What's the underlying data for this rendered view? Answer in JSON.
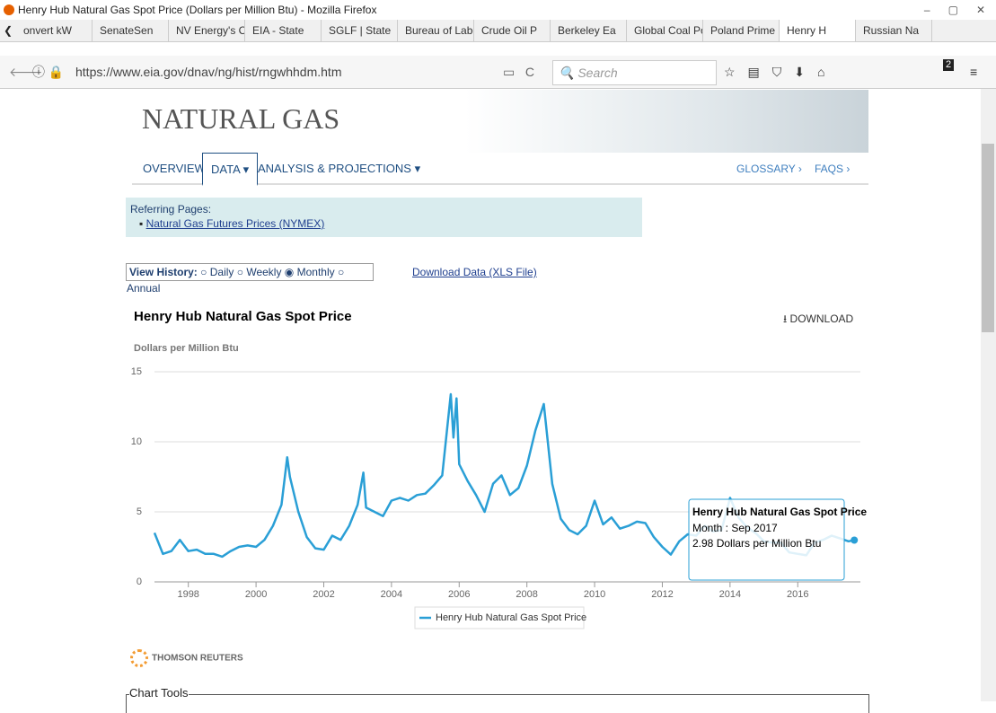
{
  "browser": {
    "window_title": "Henry Hub Natural Gas Spot Price (Dollars per Million Btu) - Mozilla Firefox",
    "tabs": [
      "onvert kW",
      "SenateSen",
      "NV Energy's Cl",
      "EIA - State",
      "SGLF | State",
      "Bureau of Labo",
      "Crude Oil P",
      "Berkeley Ea",
      "Global Coal Po",
      "Poland Prime M",
      "Henry H",
      "Russian Na"
    ],
    "url": "https://www.eia.gov/dnav/ng/hist/rngwhhdm.htm",
    "search": "Search",
    "badge": "2"
  },
  "page": {
    "header": "NATURAL GAS",
    "nav": [
      "OVERVIEW",
      "DATA ▾",
      "ANALYSIS & PROJECTIONS ▾"
    ],
    "glossary": "GLOSSARY ›",
    "faqs": "FAQS ›",
    "referring_label": "Referring Pages:",
    "referring_link": "Natural Gas Futures Prices (NYMEX)",
    "view_history": "View History:",
    "options": [
      "Daily",
      "Weekly",
      "Monthly",
      "Annual"
    ],
    "download_data": "Download Data (XLS File)",
    "download_button": "DOWNLOAD",
    "thomson": "THOMSON REUTERS",
    "chart_tools": "Chart Tools"
  },
  "chart_data": {
    "type": "line",
    "title": "Henry Hub Natural Gas Spot Price",
    "y_label": "Dollars per Million Btu",
    "x": [
      1997,
      1997.25,
      1997.5,
      1997.75,
      1998,
      1998.25,
      1998.5,
      1998.75,
      1999,
      1999.25,
      1999.5,
      1999.75,
      2000,
      2000.25,
      2000.5,
      2000.75,
      2000.92,
      2001,
      2001.25,
      2001.5,
      2001.75,
      2002,
      2002.25,
      2002.5,
      2002.75,
      2003,
      2003.17,
      2003.25,
      2003.5,
      2003.75,
      2004,
      2004.25,
      2004.5,
      2004.75,
      2005,
      2005.25,
      2005.5,
      2005.75,
      2005.83,
      2005.92,
      2006,
      2006.25,
      2006.5,
      2006.75,
      2007,
      2007.25,
      2007.5,
      2007.75,
      2008,
      2008.25,
      2008.5,
      2008.75,
      2009,
      2009.25,
      2009.5,
      2009.75,
      2010,
      2010.25,
      2010.5,
      2010.75,
      2011,
      2011.25,
      2011.5,
      2011.75,
      2012,
      2012.25,
      2012.5,
      2012.75,
      2013,
      2013.25,
      2013.5,
      2013.75,
      2014,
      2014.25,
      2014.5,
      2014.75,
      2015,
      2015.25,
      2015.5,
      2015.75,
      2016,
      2016.25,
      2016.5,
      2016.75,
      2017,
      2017.25,
      2017.5,
      2017.67
    ],
    "series": [
      {
        "name": "Henry Hub Natural Gas Spot Price",
        "color": "#2a9fd6",
        "values": [
          3.5,
          2.0,
          2.2,
          3.0,
          2.2,
          2.3,
          2.0,
          2.0,
          1.8,
          2.2,
          2.5,
          2.6,
          2.5,
          3.0,
          4.0,
          5.5,
          8.9,
          7.5,
          5.0,
          3.2,
          2.4,
          2.3,
          3.3,
          3.0,
          4.0,
          5.5,
          7.8,
          5.3,
          5.0,
          4.7,
          5.8,
          6.0,
          5.8,
          6.2,
          6.3,
          6.9,
          7.6,
          13.4,
          10.3,
          13.1,
          8.4,
          7.2,
          6.2,
          5.0,
          7.0,
          7.6,
          6.2,
          6.7,
          8.3,
          10.8,
          12.7,
          7.0,
          4.5,
          3.7,
          3.4,
          4.0,
          5.8,
          4.1,
          4.6,
          3.8,
          4.0,
          4.3,
          4.2,
          3.2,
          2.5,
          1.95,
          2.9,
          3.4,
          3.3,
          4.0,
          3.6,
          3.7,
          6.0,
          4.6,
          3.9,
          3.5,
          2.9,
          2.8,
          2.8,
          2.1,
          2.0,
          1.9,
          2.8,
          3.0,
          3.3,
          3.1,
          2.9,
          2.98
        ]
      }
    ],
    "xlim": [
      1997,
      2017.85
    ],
    "ylim": [
      0,
      15
    ],
    "xticks": [
      1998,
      2000,
      2002,
      2004,
      2006,
      2008,
      2010,
      2012,
      2014,
      2016
    ],
    "yticks": [
      0,
      5,
      10,
      15
    ],
    "grid": true,
    "tooltip": {
      "title": "Henry Hub Natural Gas Spot Price",
      "month": "Month : Sep 2017",
      "value": "2.98 Dollars per Million Btu"
    }
  }
}
